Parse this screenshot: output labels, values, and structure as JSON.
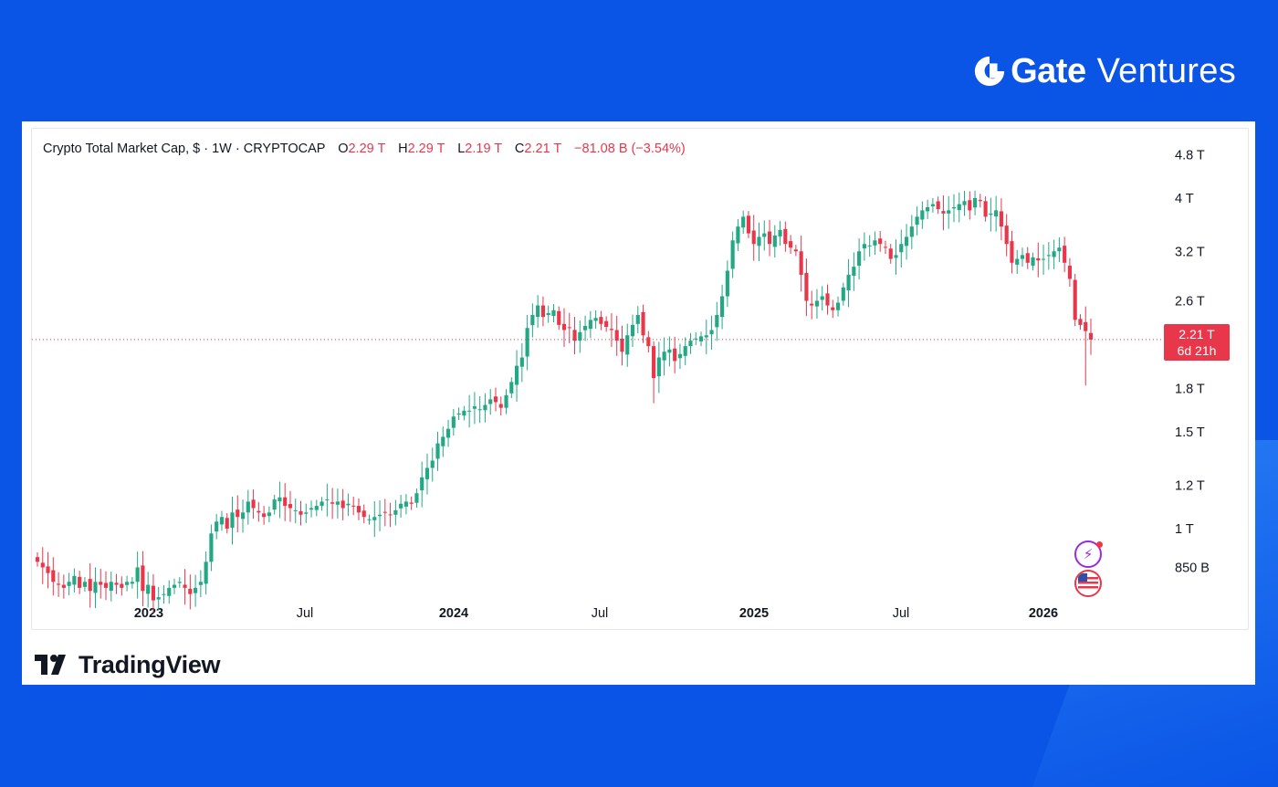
{
  "brand": {
    "name": "Gate",
    "sub": "Ventures",
    "color": "#ffffff",
    "background": "#0a55e6"
  },
  "legend": {
    "title": "Crypto Total Market Cap, $ · 1W · CRYPTOCAP",
    "o_label": "O",
    "o_value": "2.29 T",
    "h_label": "H",
    "h_value": "2.29 T",
    "l_label": "L",
    "l_value": "2.19 T",
    "c_label": "C",
    "c_value": "2.21 T",
    "change": "−81.08 B (−3.54%)"
  },
  "price_tag": {
    "value": "2.21 T",
    "countdown": "6d 21h"
  },
  "footer": {
    "logo_text": "TradingView",
    "logo_icon": "tradingview-icon"
  },
  "badges": [
    "events-lightning-icon",
    "us-flag-icon"
  ],
  "colors": {
    "up": "#22a884",
    "down": "#e8374b",
    "text": "#131722"
  },
  "chart_data": {
    "type": "candlestick",
    "scale": "log",
    "y_ticks": [
      {
        "value": 4.8,
        "label": "4.8 T"
      },
      {
        "value": 4.0,
        "label": "4 T"
      },
      {
        "value": 3.2,
        "label": "3.2 T"
      },
      {
        "value": 2.6,
        "label": "2.6 T"
      },
      {
        "value": 1.8,
        "label": "1.8 T"
      },
      {
        "value": 1.5,
        "label": "1.5 T"
      },
      {
        "value": 1.2,
        "label": "1.2 T"
      },
      {
        "value": 1.0,
        "label": "1 T"
      },
      {
        "value": 0.85,
        "label": "850 B"
      }
    ],
    "x_ticks": [
      {
        "label": "2023",
        "bold": true
      },
      {
        "label": "Jul",
        "bold": false
      },
      {
        "label": "2024",
        "bold": true
      },
      {
        "label": "Jul",
        "bold": false
      },
      {
        "label": "2025",
        "bold": true
      },
      {
        "label": "Jul",
        "bold": false
      },
      {
        "label": "2026",
        "bold": true
      }
    ],
    "last_close": 2.21,
    "series_trillions": [
      0.87,
      0.85,
      0.83,
      0.8,
      0.79,
      0.78,
      0.8,
      0.82,
      0.78,
      0.8,
      0.77,
      0.8,
      0.79,
      0.78,
      0.8,
      0.79,
      0.78,
      0.8,
      0.8,
      0.85,
      0.77,
      0.79,
      0.74,
      0.75,
      0.76,
      0.78,
      0.79,
      0.8,
      0.78,
      0.76,
      0.78,
      0.8,
      0.87,
      0.98,
      1.03,
      1.05,
      1.0,
      1.07,
      1.05,
      1.07,
      1.12,
      1.09,
      1.07,
      1.05,
      1.07,
      1.13,
      1.14,
      1.1,
      1.09,
      1.08,
      1.06,
      1.07,
      1.09,
      1.1,
      1.12,
      1.13,
      1.11,
      1.12,
      1.09,
      1.11,
      1.1,
      1.07,
      1.05,
      1.04,
      1.05,
      1.06,
      1.07,
      1.06,
      1.08,
      1.11,
      1.12,
      1.11,
      1.16,
      1.24,
      1.29,
      1.33,
      1.43,
      1.47,
      1.52,
      1.6,
      1.62,
      1.64,
      1.64,
      1.67,
      1.65,
      1.68,
      1.72,
      1.7,
      1.66,
      1.75,
      1.85,
      1.98,
      2.05,
      2.32,
      2.45,
      2.55,
      2.43,
      2.47,
      2.5,
      2.35,
      2.3,
      2.32,
      2.2,
      2.28,
      2.34,
      2.4,
      2.42,
      2.36,
      2.33,
      2.3,
      2.2,
      2.1,
      2.25,
      2.35,
      2.45,
      2.25,
      2.15,
      1.88,
      2.05,
      2.1,
      2.12,
      2.02,
      2.08,
      2.15,
      2.2,
      2.22,
      2.24,
      2.25,
      2.3,
      2.45,
      2.65,
      2.95,
      3.35,
      3.55,
      3.7,
      3.45,
      3.3,
      3.4,
      3.45,
      3.3,
      3.42,
      3.5,
      3.3,
      3.25,
      3.2,
      2.9,
      2.6,
      2.55,
      2.6,
      2.65,
      2.55,
      2.5,
      2.58,
      2.75,
      2.9,
      3.0,
      3.2,
      3.3,
      3.28,
      3.35,
      3.3,
      3.25,
      3.1,
      3.15,
      3.3,
      3.4,
      3.55,
      3.7,
      3.8,
      3.85,
      3.9,
      3.82,
      3.75,
      3.8,
      3.85,
      3.9,
      3.95,
      3.8,
      4.0,
      3.95,
      3.7,
      3.75,
      3.8,
      3.55,
      3.3,
      3.05,
      3.1,
      3.15,
      3.05,
      3.12,
      3.08,
      3.1,
      3.15,
      3.2,
      3.25,
      3.05,
      2.85,
      2.4,
      2.35,
      2.29,
      2.21
    ]
  }
}
